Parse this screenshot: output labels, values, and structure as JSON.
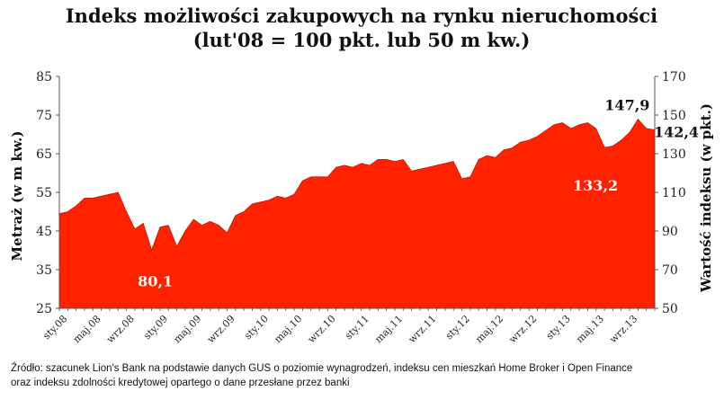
{
  "chart_data": {
    "type": "area",
    "title": "Indeks możliwości zakupowych na rynku nieruchomości",
    "subtitle": "(lut'08 = 100 pkt. lub 50 m kw.)",
    "ylabel_left": "Metraż (w m kw.)",
    "ylabel_right": "Wartość indeksu (w pkt.)",
    "ylim_left": [
      25,
      85
    ],
    "yticks_left": [
      25,
      35,
      45,
      55,
      65,
      75,
      85
    ],
    "ylim_right": [
      50,
      170
    ],
    "yticks_right": [
      50,
      70,
      90,
      110,
      130,
      150,
      170
    ],
    "grid": false,
    "x_tick_labels": [
      "sty.08",
      "maj.08",
      "wrz.08",
      "sty.09",
      "maj.09",
      "wrz.09",
      "sty.10",
      "maj.10",
      "wrz.10",
      "sty.11",
      "maj.11",
      "wrz.11",
      "sty.12",
      "maj.12",
      "wrz.12",
      "sty.13",
      "maj.13",
      "wrz.13"
    ],
    "x_tick_indices": [
      0,
      4,
      8,
      12,
      16,
      20,
      24,
      28,
      32,
      36,
      40,
      44,
      48,
      52,
      56,
      60,
      64,
      68
    ],
    "series": [
      {
        "axis": "right",
        "color": "#ff2200",
        "values": [
          99,
          100,
          103,
          107,
          107,
          108,
          109,
          110,
          100,
          91,
          94,
          80.1,
          92,
          93,
          82,
          90,
          96,
          93,
          95,
          93,
          89,
          98,
          100,
          104,
          105,
          106,
          108,
          107,
          109,
          116,
          118,
          118,
          118,
          123,
          124,
          123,
          125,
          124,
          127,
          127,
          126,
          127,
          121,
          122,
          123,
          124,
          125,
          126,
          117,
          118,
          127,
          129,
          128,
          132,
          133,
          136,
          137,
          139,
          142,
          145,
          146,
          143,
          145,
          146,
          143,
          133.2,
          134,
          137,
          141,
          147.9,
          143,
          142.4
        ]
      }
    ],
    "annotations": [
      {
        "text": "80,1",
        "index": 11,
        "style": "white"
      },
      {
        "text": "133,2",
        "index": 65,
        "style": "white"
      },
      {
        "text": "147,9",
        "index": 69,
        "style": "dark"
      },
      {
        "text": "142,4",
        "index": 71,
        "style": "dark"
      }
    ]
  },
  "source": {
    "line1": "Źródło: szacunek Lion's Bank na podstawie danych GUS o poziomie wynagrodzeń, indeksu cen mieszkań Home Broker i Open Finance",
    "line2": "oraz indeksu zdolności kredytowej opartego o dane przesłane przez banki"
  }
}
